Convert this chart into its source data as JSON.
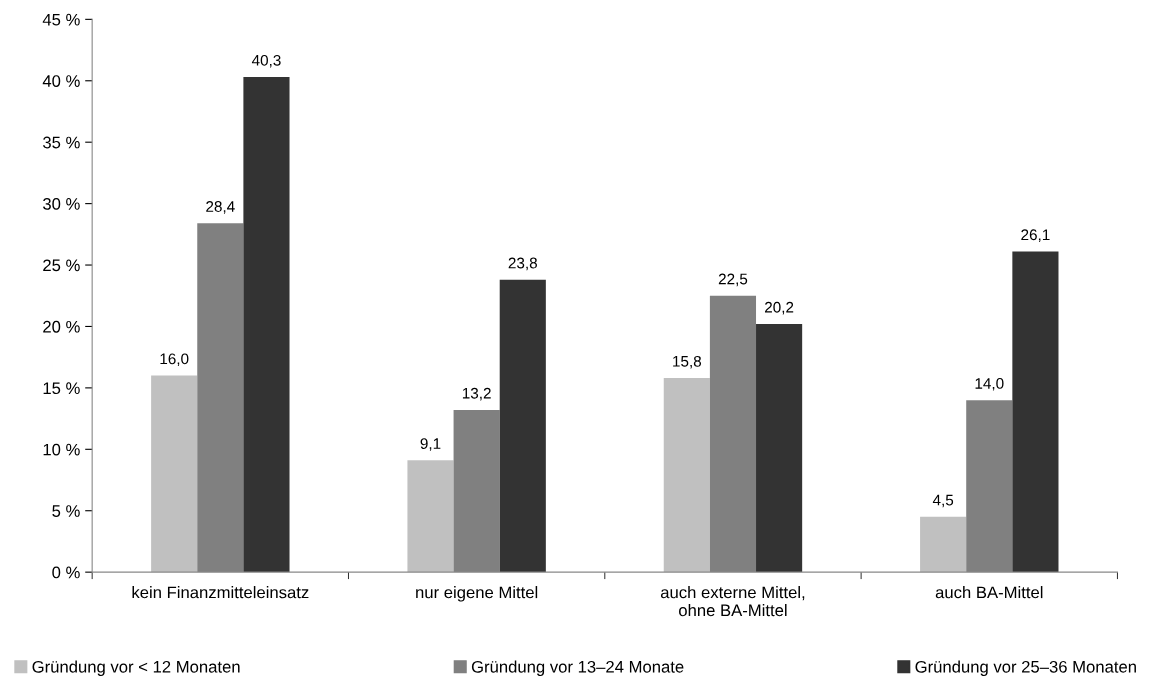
{
  "chart_data": {
    "type": "bar",
    "categories": [
      "kein Finanzmitteleinsatz",
      "nur eigene Mittel",
      "auch externe Mittel,\nohne BA-Mittel",
      "auch BA-Mittel"
    ],
    "series": [
      {
        "name": "Gründung vor < 12 Monaten",
        "color": "#c0c0c0",
        "values": [
          16.0,
          9.1,
          15.8,
          4.5
        ],
        "value_labels": [
          "16,0",
          "9,1",
          "15,8",
          "4,5"
        ]
      },
      {
        "name": "Gründung vor 13–24 Monate",
        "color": "#808080",
        "values": [
          28.4,
          13.2,
          22.5,
          14.0
        ],
        "value_labels": [
          "28,4",
          "13,2",
          "22,5",
          "14,0"
        ]
      },
      {
        "name": "Gründung vor 25–36 Monaten",
        "color": "#333333",
        "values": [
          40.3,
          23.8,
          20.2,
          26.1
        ],
        "value_labels": [
          "40,3",
          "23,8",
          "20,2",
          "26,1"
        ]
      }
    ],
    "ylim": [
      0,
      45
    ],
    "yticks": [
      {
        "value": 0,
        "label": "0 %"
      },
      {
        "value": 5,
        "label": "5 %"
      },
      {
        "value": 10,
        "label": "10 %"
      },
      {
        "value": 15,
        "label": "15 %"
      },
      {
        "value": 20,
        "label": "20 %"
      },
      {
        "value": 25,
        "label": "25 %"
      },
      {
        "value": 30,
        "label": "30 %"
      },
      {
        "value": 35,
        "label": "35 %"
      },
      {
        "value": 40,
        "label": "40 %"
      },
      {
        "value": 45,
        "label": "45 %"
      }
    ],
    "grid": false,
    "legend": "bottom"
  }
}
